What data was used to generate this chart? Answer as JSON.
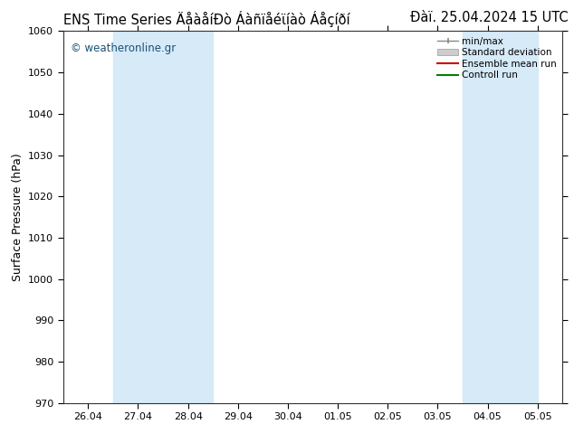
{
  "title_left": "ENS Time Series ÄåàåíÐò Áàñïåéϊíàò Áåçíðí",
  "title_right": "Đàï. 25.04.2024 15 UTC",
  "ylabel": "Surface Pressure (hPa)",
  "ylim": [
    970,
    1060
  ],
  "yticks": [
    970,
    980,
    990,
    1000,
    1010,
    1020,
    1030,
    1040,
    1050,
    1060
  ],
  "xtick_labels": [
    "26.04",
    "27.04",
    "28.04",
    "29.04",
    "30.04",
    "01.05",
    "02.05",
    "03.05",
    "04.05",
    "05.05"
  ],
  "shade_color": "#d6eaf8",
  "background_color": "#ffffff",
  "watermark": "© weatheronline.gr",
  "watermark_color": "#1a5276",
  "border_color": "#333333",
  "tick_color": "#000000",
  "font_size_title": 10.5,
  "font_size_axis": 9,
  "font_size_tick": 8,
  "font_size_legend": 7.5,
  "font_size_watermark": 8.5
}
